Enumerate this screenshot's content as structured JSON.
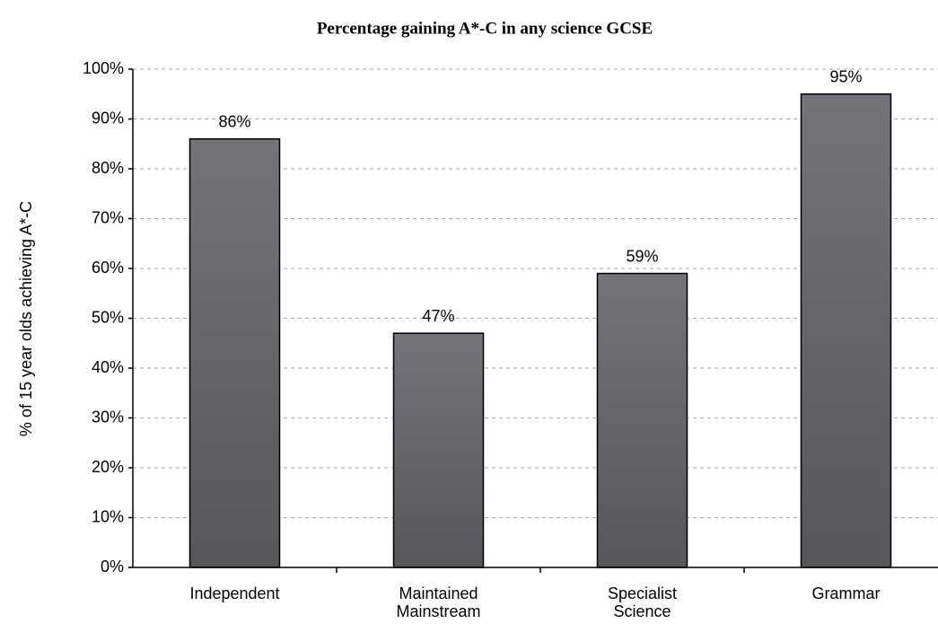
{
  "chart_data": {
    "type": "bar",
    "title": "Percentage gaining A*-C in any science GCSE",
    "y_label": "% of 15 year olds achieving A*-C",
    "categories": [
      "Independent",
      "Maintained Mainstream",
      "Specialist Science",
      "Grammar"
    ],
    "values": [
      86,
      47,
      59,
      95
    ],
    "value_labels": [
      "86%",
      "47%",
      "59%",
      "95%"
    ],
    "color": "#68696d",
    "ylim": [
      0,
      100
    ],
    "yticks": [
      {
        "value": 0,
        "label": "0%"
      },
      {
        "value": 10,
        "label": "10%"
      },
      {
        "value": 20,
        "label": "20%"
      },
      {
        "value": 30,
        "label": "30%"
      },
      {
        "value": 40,
        "label": "40%"
      },
      {
        "value": 50,
        "label": "50%"
      },
      {
        "value": 60,
        "label": "60%"
      },
      {
        "value": 70,
        "label": "70%"
      },
      {
        "value": 80,
        "label": "80%"
      },
      {
        "value": 90,
        "label": "90%"
      },
      {
        "value": 100,
        "label": "100%"
      }
    ],
    "grid": true
  }
}
